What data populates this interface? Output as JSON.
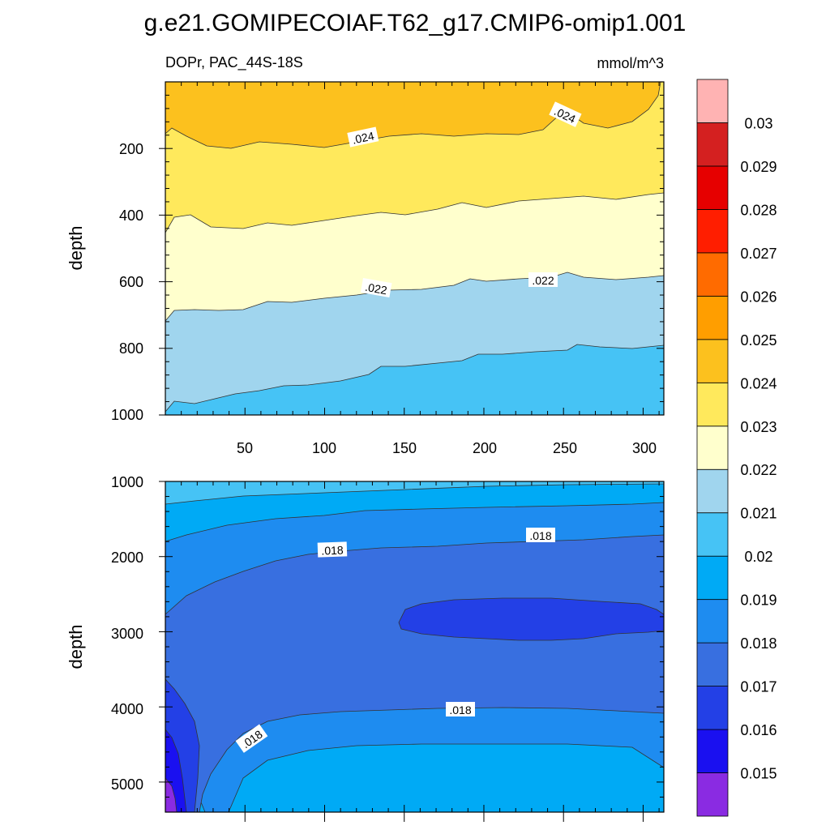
{
  "title": "g.e21.GOMIPECOIAF.T62_g17.CMIP6-omip1.001",
  "panel_top": {
    "left_label": "DOPr, PAC_44S-18S",
    "right_label": "mmol/m^3",
    "ylabel": "depth"
  },
  "panel_bottom": {
    "ylabel": "depth"
  },
  "colorbar": {
    "levels": [
      "0.015",
      "0.016",
      "0.017",
      "0.018",
      "0.019",
      "0.02",
      "0.021",
      "0.022",
      "0.023",
      "0.024",
      "0.025",
      "0.026",
      "0.027",
      "0.028",
      "0.029",
      "0.03"
    ],
    "colors": [
      "#8a2be2",
      "#1a10f0",
      "#2340e6",
      "#386fe0",
      "#1e8cf0",
      "#00aaf5",
      "#46c3f5",
      "#a0d5ee",
      "#ffffcd",
      "#ffe95c",
      "#fcc11e",
      "#ff9e00",
      "#ff6b00",
      "#ff1e00",
      "#e60000",
      "#d42020",
      "#ffb3b3"
    ]
  },
  "chart_data": [
    {
      "type": "heatmap",
      "subtype": "filled-contour",
      "title": "DOPr, PAC_44S-18S",
      "units": "mmol/m^3",
      "xlabel": "",
      "ylabel": "depth",
      "xlim": [
        0,
        313
      ],
      "ylim": [
        1000,
        0
      ],
      "xticks": [
        "50",
        "100",
        "150",
        "200",
        "250",
        "300"
      ],
      "yticks": [
        "200",
        "400",
        "600",
        "800",
        "1000"
      ],
      "contour_labels": [
        ".024",
        ".024",
        ".022",
        ".022"
      ],
      "bands": [
        {
          "range": "0.023-0.024",
          "top_depth_start": 0,
          "bottom_depth_at_x": [
            [
              0,
              450
            ],
            [
              50,
              440
            ],
            [
              100,
              420
            ],
            [
              150,
              410
            ],
            [
              200,
              395
            ],
            [
              250,
              375
            ],
            [
              313,
              350
            ]
          ]
        },
        {
          "range": "0.022-0.023",
          "bottom_depth_at_x": [
            [
              0,
              700
            ],
            [
              50,
              680
            ],
            [
              100,
              660
            ],
            [
              150,
              645
            ],
            [
              200,
              625
            ],
            [
              250,
              600
            ],
            [
              313,
              580
            ]
          ]
        },
        {
          "range": "0.021-0.022",
          "bottom_depth_at_x": [
            [
              0,
              990
            ],
            [
              50,
              945
            ],
            [
              100,
              900
            ],
            [
              150,
              860
            ],
            [
              200,
              820
            ],
            [
              250,
              800
            ],
            [
              313,
              800
            ]
          ]
        },
        {
          "range": "0.020-0.021",
          "bottom_depth_at_x": [
            [
              0,
              1000
            ],
            [
              313,
              1000
            ]
          ]
        }
      ]
    },
    {
      "type": "heatmap",
      "subtype": "filled-contour",
      "title": "",
      "units": "mmol/m^3",
      "xlabel": "",
      "ylabel": "depth",
      "xlim": [
        0,
        313
      ],
      "ylim": [
        5400,
        1000
      ],
      "yticks": [
        "1000",
        "2000",
        "3000",
        "4000",
        "5000"
      ],
      "contour_labels": [
        ".018",
        ".018",
        ".018",
        ".018"
      ],
      "features": [
        {
          "range": "0.016-0.017",
          "description_depth": [
            2600,
            3100
          ],
          "x_range": [
            145,
            313
          ]
        },
        {
          "range": "0.017-0.018",
          "description_depth": [
            1800,
            3900
          ]
        },
        {
          "range": "0.018-0.019",
          "description_depth": [
            3900,
            4500
          ]
        },
        {
          "range": "0.019-0.020",
          "description_depth": [
            4500,
            5400
          ]
        }
      ]
    }
  ]
}
